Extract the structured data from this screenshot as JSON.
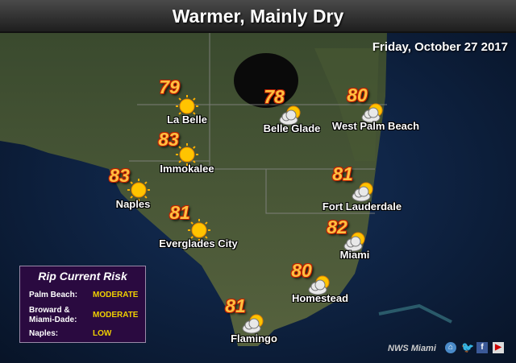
{
  "header": {
    "title": "Warmer, Mainly Dry",
    "date": "Friday, October 27 2017"
  },
  "cities": [
    {
      "name": "La Belle",
      "temp": "79",
      "icon": "sunny-icon"
    },
    {
      "name": "Belle Glade",
      "temp": "78",
      "icon": "partly-cloudy-icon"
    },
    {
      "name": "West Palm Beach",
      "temp": "80",
      "icon": "partly-cloudy-icon"
    },
    {
      "name": "Immokalee",
      "temp": "83",
      "icon": "sunny-icon"
    },
    {
      "name": "Naples",
      "temp": "83",
      "icon": "sunny-icon"
    },
    {
      "name": "Everglades City",
      "temp": "81",
      "icon": "sunny-icon"
    },
    {
      "name": "Fort Lauderdale",
      "temp": "81",
      "icon": "partly-cloudy-icon"
    },
    {
      "name": "Miami",
      "temp": "82",
      "icon": "partly-cloudy-icon"
    },
    {
      "name": "Homestead",
      "temp": "80",
      "icon": "partly-cloudy-icon"
    },
    {
      "name": "Flamingo",
      "temp": "81",
      "icon": "partly-cloudy-icon"
    }
  ],
  "rip_current": {
    "title": "Rip Current Risk",
    "rows": [
      {
        "label": "Palm Beach:",
        "value": "MODERATE"
      },
      {
        "label": "Broward & Miami-Dade:",
        "value": "MODERATE"
      },
      {
        "label": "Naples:",
        "value": "LOW"
      }
    ],
    "value_color": "#f0d000"
  },
  "footer": {
    "credit": "NWS Miami",
    "icons": [
      "home-icon",
      "twitter-icon",
      "facebook-icon",
      "youtube-icon"
    ]
  }
}
